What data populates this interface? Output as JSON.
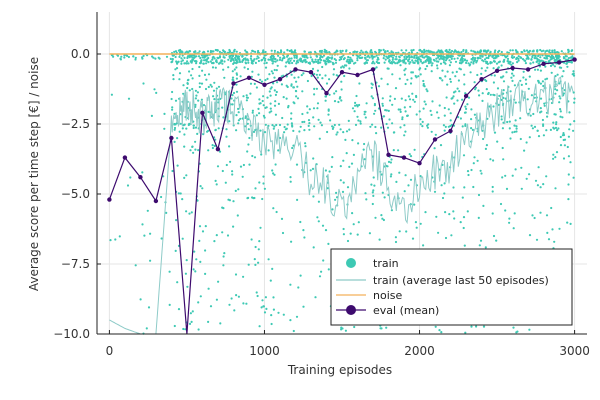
{
  "chart_data": {
    "type": "scatter",
    "xlabel": "Training episodes",
    "ylabel": "Average score per time step [€] / noise",
    "xlim": [
      -80,
      3080
    ],
    "ylim": [
      -10,
      1.5
    ],
    "x_ticks": [
      0,
      1000,
      2000,
      3000
    ],
    "x_tick_labels": [
      "0",
      "1000",
      "2000",
      "3000"
    ],
    "y_ticks": [
      -10,
      -7.5,
      -5,
      -2.5,
      0
    ],
    "y_tick_labels": [
      "−10.0",
      "−7.5",
      "−5.0",
      "−2.5",
      "0.0"
    ],
    "grid": true,
    "legend_position": "bottom-right",
    "colors": {
      "train": "#3ec9b4",
      "train_avg": "#8ecbc8",
      "noise": "#f4b15a",
      "eval": "#3d0a6e"
    },
    "series": [
      {
        "name": "train",
        "kind": "scatter",
        "description_note": "dense per-episode scatter, mostly between 0.0 and −3, spreading down to −10; sparse before episode 400",
        "density_profile": [
          {
            "x_from": 0,
            "x_to": 400,
            "points": 60,
            "y_min": -10,
            "y_max": 0.1
          },
          {
            "x_from": 400,
            "x_to": 800,
            "points": 420,
            "y_min": -10,
            "y_max": 0.15
          },
          {
            "x_from": 800,
            "x_to": 1700,
            "points": 800,
            "y_min": -10,
            "y_max": 0.15
          },
          {
            "x_from": 1700,
            "x_to": 2300,
            "points": 600,
            "y_min": -10,
            "y_max": 0.15
          },
          {
            "x_from": 2300,
            "x_to": 3000,
            "points": 700,
            "y_min": -10,
            "y_max": 0.15
          }
        ]
      },
      {
        "name": "train (average last 50 episodes)",
        "kind": "line",
        "x": [
          0,
          100,
          200,
          300,
          400,
          450,
          500,
          550,
          600,
          650,
          700,
          750,
          800,
          900,
          1000,
          1100,
          1200,
          1300,
          1400,
          1500,
          1600,
          1700,
          1800,
          1900,
          2000,
          2100,
          2200,
          2300,
          2400,
          2500,
          2600,
          2700,
          2800,
          2900,
          3000
        ],
        "y": [
          -9.5,
          -9.8,
          -10,
          -10,
          -2.5,
          -2.2,
          -1.8,
          -2.0,
          -2.3,
          -2.0,
          -1.9,
          -1.7,
          -2.0,
          -2.3,
          -3.0,
          -3.4,
          -3.2,
          -4.5,
          -4.8,
          -5.5,
          -4.5,
          -3.6,
          -4.8,
          -5.5,
          -4.6,
          -4.2,
          -3.9,
          -3.0,
          -2.5,
          -2.0,
          -1.7,
          -1.6,
          -1.5,
          -1.4,
          -1.5
        ]
      },
      {
        "name": "noise",
        "kind": "line",
        "x": [
          0,
          3000
        ],
        "y": [
          0.0,
          0.0
        ]
      },
      {
        "name": "eval (mean)",
        "kind": "line+marker",
        "x": [
          0,
          100,
          200,
          300,
          400,
          500,
          600,
          700,
          800,
          900,
          1000,
          1100,
          1200,
          1300,
          1400,
          1500,
          1600,
          1700,
          1800,
          1900,
          2000,
          2100,
          2200,
          2300,
          2400,
          2500,
          2600,
          2700,
          2800,
          2900,
          3000
        ],
        "y": [
          -5.2,
          -3.7,
          -4.4,
          -5.25,
          -3.0,
          -15.0,
          -2.1,
          -3.4,
          -1.05,
          -0.85,
          -1.1,
          -0.9,
          -0.55,
          -0.65,
          -1.4,
          -0.65,
          -0.75,
          -0.55,
          -3.6,
          -3.7,
          -3.9,
          -3.05,
          -2.75,
          -1.5,
          -0.9,
          -0.6,
          -0.5,
          -0.55,
          -0.35,
          -0.3,
          -0.2
        ]
      }
    ]
  }
}
